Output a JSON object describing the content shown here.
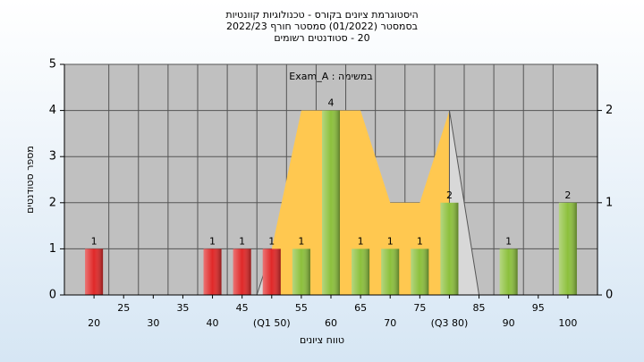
{
  "chart_data": {
    "type": "bar",
    "title": [
      "היסטוגרמת ציונים בקורס - טכנולוגיות קוונטיות",
      "בסמסטר (01/2022) סמסטר חורף 2022/23",
      "20 - סטודנטים רשומים"
    ],
    "annotation": "במשימה : Exam_A",
    "x_label": "טווח ציונים",
    "y_label": "מספר סטודנטים",
    "x": [
      20,
      40,
      45,
      50,
      55,
      60,
      65,
      70,
      75,
      80,
      90,
      100
    ],
    "values": [
      1,
      1,
      1,
      1,
      1,
      4,
      1,
      1,
      1,
      2,
      1,
      2
    ],
    "colors": [
      "#e02828",
      "#e02828",
      "#e02828",
      "#e02828",
      "#8cc03c",
      "#8cc03c",
      "#8cc03c",
      "#8cc03c",
      "#8cc03c",
      "#8cc03c",
      "#8cc03c",
      "#8cc03c"
    ],
    "areas": [
      {
        "color": "#ffc850",
        "axis": "y2",
        "x": [
          50,
          55,
          60,
          65,
          70,
          75,
          80
        ],
        "values": [
          0.5,
          2,
          2,
          2,
          1,
          1,
          2
        ]
      },
      {
        "color": "#d8d8d8",
        "axis": "y2",
        "x": [
          47.5,
          50,
          80,
          80,
          85
        ],
        "values": [
          0,
          0.5,
          null,
          2,
          0
        ]
      }
    ],
    "xlim": [
      15,
      105
    ],
    "xticks": [
      20,
      25,
      30,
      35,
      40,
      45,
      {
        "value": 50,
        "label": "(Q1 50)"
      },
      55,
      60,
      65,
      70,
      75,
      {
        "value": 80,
        "label": "(Q3 80)"
      },
      85,
      90,
      95,
      100
    ],
    "ylim": [
      0,
      5
    ],
    "yticks": [
      0,
      1,
      2,
      3,
      4,
      5
    ],
    "y2lim": [
      0,
      2.5
    ],
    "y2ticks": [
      0,
      1,
      2
    ],
    "grid": true
  }
}
